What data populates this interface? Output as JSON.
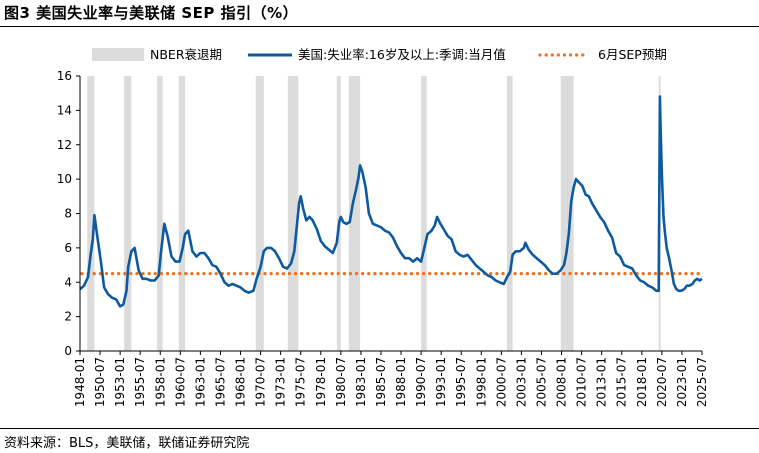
{
  "figure": {
    "title": "图3  美国失业率与美联储 SEP 指引（%）",
    "source": "资料来源：BLS，美联储，联储证券研究院"
  },
  "colors": {
    "unemployment_line": "#0d5a9e",
    "sep_line": "#f0701e",
    "recession_band": "#dcdcdc",
    "axis": "#000000"
  },
  "chart_data": {
    "type": "line",
    "title": "",
    "xlabel": "",
    "ylabel": "",
    "ylim": [
      0,
      16
    ],
    "yticks": [
      0,
      2,
      4,
      6,
      8,
      10,
      12,
      14,
      16
    ],
    "xlim": [
      1948.0,
      2025.5
    ],
    "xtick_labels": [
      "1948-01",
      "1950-07",
      "1953-01",
      "1955-07",
      "1958-01",
      "1960-07",
      "1963-01",
      "1965-07",
      "1968-01",
      "1970-07",
      "1973-01",
      "1975-07",
      "1978-01",
      "1980-07",
      "1983-01",
      "1985-07",
      "1988-01",
      "1990-07",
      "1993-01",
      "1995-07",
      "1998-01",
      "2000-07",
      "2003-01",
      "2005-07",
      "2008-01",
      "2010-07",
      "2013-01",
      "2015-07",
      "2018-01",
      "2020-07",
      "2023-01",
      "2025-07"
    ],
    "legend_position": "top",
    "grid": false,
    "recessions": {
      "name": "NBER衰退期",
      "periods": [
        [
          1948.9,
          1949.8
        ],
        [
          1953.5,
          1954.4
        ],
        [
          1957.6,
          1958.3
        ],
        [
          1960.3,
          1961.1
        ],
        [
          1969.9,
          1970.9
        ],
        [
          1973.9,
          1975.2
        ],
        [
          1980.0,
          1980.5
        ],
        [
          1981.5,
          1982.9
        ],
        [
          1990.5,
          1991.2
        ],
        [
          2001.2,
          2001.9
        ],
        [
          2007.9,
          2009.5
        ],
        [
          2020.1,
          2020.3
        ]
      ]
    },
    "series": [
      {
        "name": "美国:失业率:16岁及以上:季调:当月值",
        "x": [
          1948.0,
          1948.5,
          1949.0,
          1949.3,
          1949.6,
          1949.8,
          1950.2,
          1950.6,
          1951.0,
          1951.5,
          1952.0,
          1952.5,
          1953.0,
          1953.4,
          1953.8,
          1954.0,
          1954.4,
          1954.8,
          1955.3,
          1955.8,
          1956.3,
          1956.8,
          1957.3,
          1957.8,
          1958.1,
          1958.5,
          1958.9,
          1959.4,
          1959.9,
          1960.4,
          1960.8,
          1961.1,
          1961.5,
          1962.0,
          1962.5,
          1963.0,
          1963.5,
          1964.0,
          1964.5,
          1965.0,
          1965.5,
          1966.0,
          1966.5,
          1967.0,
          1967.5,
          1968.0,
          1968.5,
          1969.0,
          1969.6,
          1970.0,
          1970.5,
          1970.9,
          1971.3,
          1971.8,
          1972.3,
          1972.8,
          1973.3,
          1973.8,
          1974.3,
          1974.7,
          1975.0,
          1975.3,
          1975.5,
          1975.8,
          1976.2,
          1976.6,
          1977.0,
          1977.5,
          1978.0,
          1978.5,
          1979.0,
          1979.5,
          1980.0,
          1980.3,
          1980.5,
          1980.8,
          1981.2,
          1981.6,
          1982.0,
          1982.4,
          1982.7,
          1982.9,
          1983.2,
          1983.6,
          1984.0,
          1984.5,
          1985.0,
          1985.5,
          1986.0,
          1986.5,
          1987.0,
          1987.5,
          1988.0,
          1988.5,
          1989.0,
          1989.5,
          1990.0,
          1990.5,
          1990.9,
          1991.3,
          1991.8,
          1992.2,
          1992.5,
          1992.9,
          1993.3,
          1993.8,
          1994.3,
          1994.8,
          1995.3,
          1995.8,
          1996.3,
          1996.8,
          1997.3,
          1997.8,
          1998.3,
          1998.8,
          1999.3,
          1999.8,
          2000.3,
          2000.8,
          2001.2,
          2001.6,
          2001.9,
          2002.3,
          2002.8,
          2003.3,
          2003.5,
          2003.9,
          2004.4,
          2004.9,
          2005.4,
          2005.9,
          2006.4,
          2006.9,
          2007.4,
          2007.9,
          2008.3,
          2008.6,
          2008.9,
          2009.2,
          2009.5,
          2009.8,
          2010.2,
          2010.6,
          2011.0,
          2011.4,
          2011.8,
          2012.3,
          2012.8,
          2013.3,
          2013.8,
          2014.3,
          2014.8,
          2015.3,
          2015.8,
          2016.3,
          2016.8,
          2017.3,
          2017.8,
          2018.3,
          2018.8,
          2019.3,
          2019.8,
          2020.1,
          2020.25,
          2020.33,
          2020.5,
          2020.7,
          2020.9,
          2021.1,
          2021.4,
          2021.7,
          2022.0,
          2022.3,
          2022.6,
          2022.9,
          2023.3,
          2023.6,
          2023.9,
          2024.3,
          2024.6,
          2024.9,
          2025.2,
          2025.5
        ],
        "values": [
          3.6,
          3.8,
          4.3,
          5.5,
          6.5,
          7.9,
          6.5,
          5.2,
          3.7,
          3.3,
          3.1,
          3.0,
          2.6,
          2.7,
          3.5,
          4.9,
          5.8,
          6.0,
          4.7,
          4.2,
          4.2,
          4.1,
          4.1,
          4.4,
          5.8,
          7.4,
          6.7,
          5.5,
          5.2,
          5.2,
          6.0,
          6.8,
          7.0,
          5.8,
          5.5,
          5.7,
          5.7,
          5.4,
          5.0,
          4.9,
          4.5,
          4.0,
          3.8,
          3.9,
          3.8,
          3.7,
          3.5,
          3.4,
          3.5,
          4.2,
          4.9,
          5.8,
          6.0,
          6.0,
          5.8,
          5.4,
          4.9,
          4.8,
          5.1,
          5.8,
          7.2,
          8.6,
          9.0,
          8.3,
          7.6,
          7.8,
          7.6,
          7.1,
          6.4,
          6.1,
          5.9,
          5.7,
          6.3,
          7.5,
          7.8,
          7.5,
          7.4,
          7.5,
          8.6,
          9.4,
          10.1,
          10.8,
          10.4,
          9.5,
          8.0,
          7.4,
          7.3,
          7.2,
          7.0,
          6.9,
          6.6,
          6.1,
          5.7,
          5.4,
          5.4,
          5.2,
          5.4,
          5.2,
          6.0,
          6.8,
          7.0,
          7.3,
          7.8,
          7.4,
          7.1,
          6.7,
          6.5,
          5.8,
          5.6,
          5.5,
          5.6,
          5.3,
          5.0,
          4.8,
          4.6,
          4.4,
          4.3,
          4.1,
          4.0,
          3.9,
          4.3,
          4.6,
          5.6,
          5.8,
          5.8,
          6.0,
          6.3,
          5.9,
          5.6,
          5.4,
          5.2,
          5.0,
          4.7,
          4.5,
          4.5,
          4.7,
          5.0,
          5.7,
          6.8,
          8.7,
          9.5,
          10.0,
          9.8,
          9.6,
          9.1,
          9.0,
          8.6,
          8.2,
          7.8,
          7.5,
          7.0,
          6.6,
          5.7,
          5.5,
          5.0,
          4.9,
          4.8,
          4.4,
          4.1,
          4.0,
          3.8,
          3.7,
          3.5,
          3.5,
          14.8,
          13.2,
          10.2,
          7.8,
          6.8,
          6.0,
          5.4,
          4.7,
          3.9,
          3.6,
          3.5,
          3.5,
          3.6,
          3.8,
          3.8,
          3.9,
          4.1,
          4.2,
          4.1,
          4.2
        ]
      },
      {
        "name": "6月SEP预期",
        "constant": 4.5
      }
    ]
  }
}
